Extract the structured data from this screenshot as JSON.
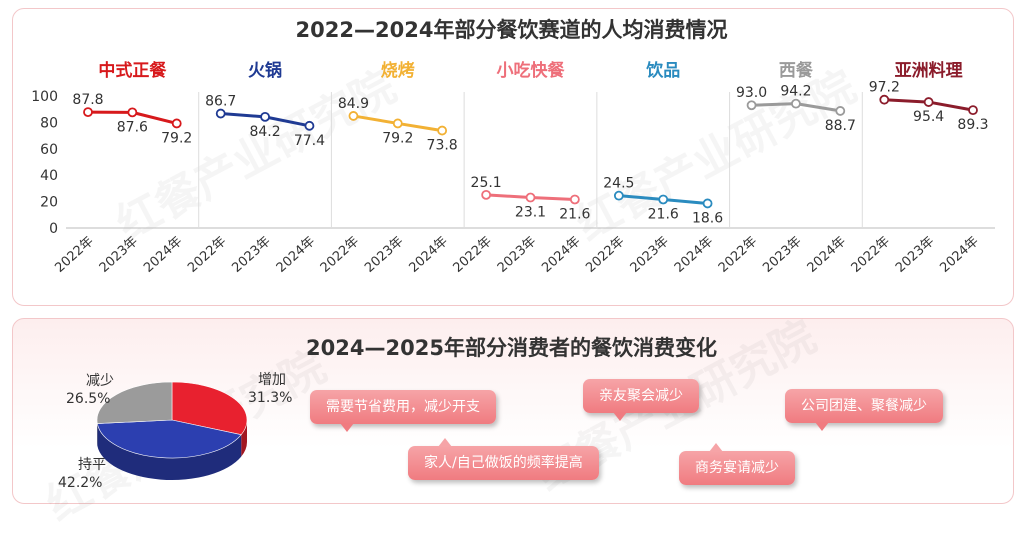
{
  "top_title": "2022—2024年部分餐饮赛道的人均消费情况",
  "bottom_title": "2024—2025年部分消费者的餐饮消费变化",
  "watermark": "红餐产业研究院",
  "chart_data": [
    {
      "type": "line",
      "title": "2022—2024年部分餐饮赛道的人均消费情况",
      "ylim": [
        0,
        100
      ],
      "yticks": [
        0,
        20,
        40,
        60,
        80,
        100
      ],
      "x": [
        "2022年",
        "2023年",
        "2024年"
      ],
      "series": [
        {
          "name": "中式正餐",
          "values": [
            87.8,
            87.6,
            79.2
          ],
          "color": "#d7191c"
        },
        {
          "name": "火锅",
          "values": [
            86.7,
            84.2,
            77.4
          ],
          "color": "#1f3a93"
        },
        {
          "name": "烧烤",
          "values": [
            84.9,
            79.2,
            73.8
          ],
          "color": "#f2b134"
        },
        {
          "name": "小吃快餐",
          "values": [
            25.1,
            23.1,
            21.6
          ],
          "color": "#ee6f7a"
        },
        {
          "name": "饮品",
          "values": [
            24.5,
            21.6,
            18.6
          ],
          "color": "#2a8bbf"
        },
        {
          "name": "西餐",
          "values": [
            93.0,
            94.2,
            88.7
          ],
          "color": "#9a9a9a"
        },
        {
          "name": "亚洲料理",
          "values": [
            97.2,
            95.4,
            89.3
          ],
          "color": "#8b1c2b"
        }
      ]
    },
    {
      "type": "pie",
      "title": "2024—2025年部分消费者的餐饮消费变化",
      "slices": [
        {
          "label": "增加",
          "value": 31.3,
          "display": "31.3%",
          "color": "#e8212f"
        },
        {
          "label": "持平",
          "value": 42.2,
          "display": "42.2%",
          "color": "#2c3fb0"
        },
        {
          "label": "减少",
          "value": 26.5,
          "display": "26.5%",
          "color": "#9b9b9b"
        }
      ]
    }
  ],
  "reasons": [
    "需要节省费用，减少开支",
    "亲友聚会减少",
    "公司团建、聚餐减少",
    "家人/自己做饭的频率提高",
    "商务宴请减少"
  ]
}
